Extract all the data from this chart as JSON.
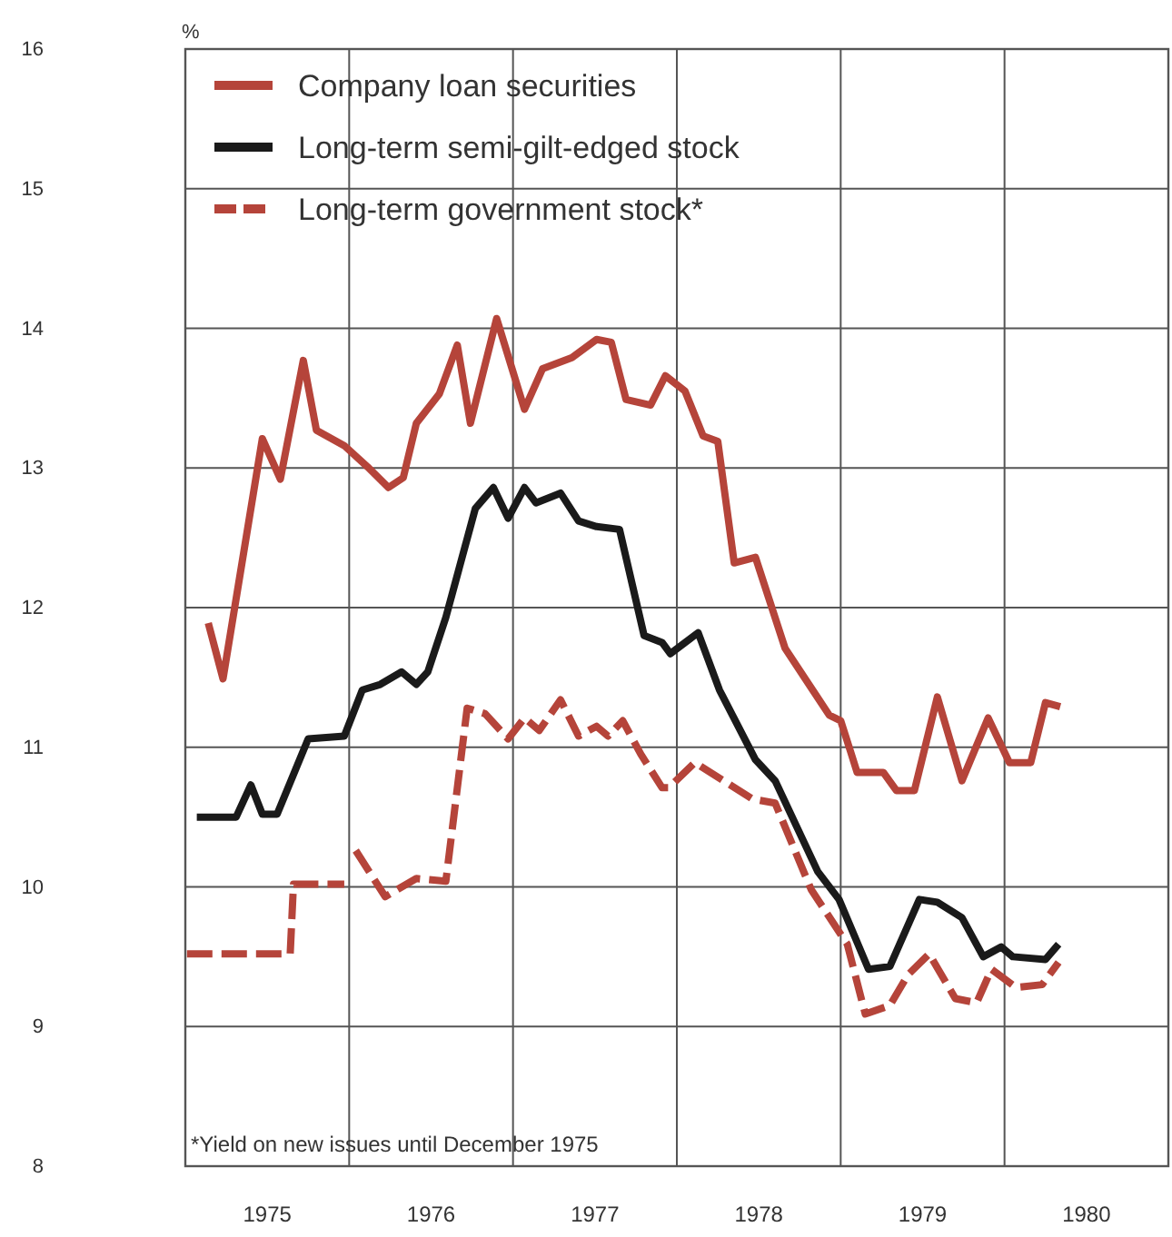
{
  "chart_data": {
    "type": "line",
    "ylabel": "%",
    "xlim": [
      1975,
      1981
    ],
    "ylim": [
      8,
      16
    ],
    "yticks": [
      8,
      9,
      10,
      11,
      12,
      13,
      14,
      15,
      16
    ],
    "xticks": [
      {
        "value": 1975.5,
        "label": "1975"
      },
      {
        "value": 1976.5,
        "label": "1976"
      },
      {
        "value": 1977.5,
        "label": "1977"
      },
      {
        "value": 1978.5,
        "label": "1978"
      },
      {
        "value": 1979.5,
        "label": "1979"
      },
      {
        "value": 1980.5,
        "label": "1980"
      },
      {
        "value": 1976,
        "label": null
      },
      {
        "value": 1977,
        "label": null
      },
      {
        "value": 1978,
        "label": null
      },
      {
        "value": 1979,
        "label": null
      },
      {
        "value": 1980,
        "label": null
      }
    ],
    "grid": true,
    "legend": "top left",
    "marker": "none",
    "annotations": [
      "*Yield on new issues until December 1975"
    ],
    "series": [
      {
        "name": "Company loan securities",
        "color": "#b5443a",
        "line_style": "solid",
        "x": [
          1975.14,
          1975.23,
          1975.47,
          1975.58,
          1975.72,
          1975.8,
          1975.97,
          1976.11,
          1976.24,
          1976.33,
          1976.41,
          1976.55,
          1976.66,
          1976.74,
          1976.9,
          1977.07,
          1977.18,
          1977.36,
          1977.51,
          1977.6,
          1977.69,
          1977.84,
          1977.93,
          1978.05,
          1978.16,
          1978.25,
          1978.35,
          1978.48,
          1978.66,
          1978.93,
          1979.0,
          1979.06,
          1979.1,
          1979.26,
          1979.34,
          1979.45,
          1979.59,
          1979.74,
          1979.9,
          1980.03,
          1980.16,
          1980.25,
          1980.34
        ],
        "values": [
          11.89,
          11.49,
          13.21,
          12.92,
          13.77,
          13.27,
          13.16,
          13.01,
          12.86,
          12.93,
          13.32,
          13.53,
          13.88,
          13.32,
          14.07,
          13.42,
          13.71,
          13.79,
          13.92,
          13.9,
          13.49,
          13.45,
          13.66,
          13.55,
          13.23,
          13.19,
          12.32,
          12.36,
          11.71,
          11.23,
          11.19,
          10.97,
          10.82,
          10.82,
          10.69,
          10.69,
          11.36,
          10.76,
          11.21,
          10.89,
          10.89,
          11.32,
          11.29
        ]
      },
      {
        "name": "Long-term semi-gilt-edged stock",
        "color": "#1a1a1a",
        "line_style": "solid",
        "x": [
          1975.07,
          1975.31,
          1975.4,
          1975.47,
          1975.56,
          1975.75,
          1975.97,
          1976.08,
          1976.19,
          1976.32,
          1976.41,
          1976.48,
          1976.59,
          1976.77,
          1976.88,
          1976.97,
          1977.07,
          1977.14,
          1977.29,
          1977.4,
          1977.51,
          1977.65,
          1977.8,
          1977.91,
          1977.96,
          1978.13,
          1978.26,
          1978.48,
          1978.6,
          1978.86,
          1978.99,
          1979.17,
          1979.3,
          1979.48,
          1979.59,
          1979.74,
          1979.87,
          1979.98,
          1980.05,
          1980.25,
          1980.33
        ],
        "values": [
          10.5,
          10.5,
          10.73,
          10.52,
          10.52,
          11.06,
          11.08,
          11.41,
          11.45,
          11.54,
          11.45,
          11.54,
          11.93,
          12.71,
          12.86,
          12.64,
          12.86,
          12.75,
          12.82,
          12.62,
          12.58,
          12.56,
          11.8,
          11.75,
          11.67,
          11.82,
          11.41,
          10.91,
          10.76,
          10.11,
          9.91,
          9.41,
          9.43,
          9.91,
          9.89,
          9.78,
          9.5,
          9.57,
          9.5,
          9.48,
          9.59
        ]
      },
      {
        "name": "Long-term government stock*",
        "color": "#b5443a",
        "line_style": "dashed",
        "x": [
          1975.01,
          1975.64,
          1975.66,
          1975.97,
          1976.0,
          1976.04,
          1976.22,
          1976.41,
          1976.59,
          1976.72,
          1976.83,
          1976.97,
          1977.07,
          1977.16,
          1977.29,
          1977.4,
          1977.51,
          1977.58,
          1977.67,
          1977.78,
          1977.91,
          1977.95,
          1978.11,
          1978.46,
          1978.6,
          1978.82,
          1979.04,
          1979.15,
          1979.3,
          1979.41,
          1979.54,
          1979.7,
          1979.83,
          1979.92,
          1980.07,
          1980.23,
          1980.33
        ],
        "values": [
          9.52,
          9.52,
          10.02,
          10.02,
          null,
          10.26,
          9.93,
          10.06,
          10.04,
          11.28,
          11.24,
          11.06,
          11.21,
          11.12,
          11.34,
          11.08,
          11.15,
          11.08,
          11.19,
          10.95,
          10.71,
          10.71,
          10.89,
          10.63,
          10.6,
          9.98,
          9.59,
          9.09,
          9.15,
          9.37,
          9.52,
          9.2,
          9.17,
          9.41,
          9.28,
          9.3,
          9.46
        ]
      }
    ]
  }
}
